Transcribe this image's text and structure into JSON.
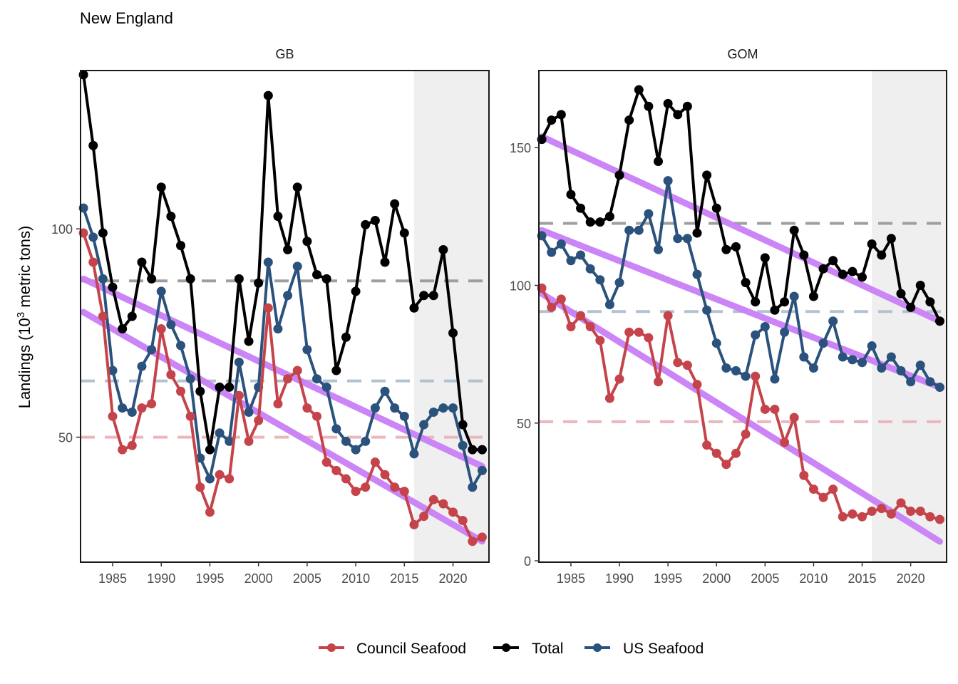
{
  "title": "New England",
  "ylabel_main": "Landings (10",
  "ylabel_sup": "3",
  "ylabel_rest": " metric tons)",
  "colors": {
    "council": "#c5444b",
    "total": "#000000",
    "us": "#2a527c",
    "trend": "#c87ef5",
    "shade": "#efefef"
  },
  "legend": [
    {
      "name": "Council Seafood",
      "color": "#c5444b"
    },
    {
      "name": "Total",
      "color": "#000000"
    },
    {
      "name": "US Seafood",
      "color": "#2a527c"
    }
  ],
  "chart_data": [
    {
      "type": "line",
      "panel": "GB",
      "x": [
        1982,
        1983,
        1984,
        1985,
        1986,
        1987,
        1988,
        1989,
        1990,
        1991,
        1992,
        1993,
        1994,
        1995,
        1996,
        1997,
        1998,
        1999,
        2000,
        2001,
        2002,
        2003,
        2004,
        2005,
        2006,
        2007,
        2008,
        2009,
        2010,
        2011,
        2012,
        2013,
        2014,
        2015,
        2016,
        2017,
        2018,
        2019,
        2020,
        2021,
        2022,
        2023
      ],
      "xlim": [
        1981.7,
        2023.7
      ],
      "xticks": [
        1985,
        1990,
        1995,
        2000,
        2005,
        2010,
        2015,
        2020
      ],
      "ylim": [
        20,
        138
      ],
      "yticks": [
        50,
        100
      ],
      "shade_from": 2016,
      "series": [
        {
          "name": "Total",
          "values": [
            137,
            120,
            99,
            86,
            76,
            79,
            92,
            88,
            110,
            103,
            96,
            88,
            61,
            47,
            62,
            62,
            88,
            73,
            87,
            132,
            103,
            95,
            110,
            97,
            89,
            88,
            66,
            74,
            85,
            101,
            102,
            92,
            106,
            99,
            81,
            84,
            84,
            95,
            75,
            53,
            47,
            47
          ]
        },
        {
          "name": "US Seafood",
          "values": [
            105,
            98,
            88,
            66,
            57,
            56,
            67,
            71,
            85,
            77,
            72,
            64,
            45,
            40,
            51,
            49,
            68,
            56,
            62,
            92,
            76,
            84,
            91,
            71,
            64,
            62,
            52,
            49,
            47,
            49,
            57,
            61,
            57,
            55,
            46,
            53,
            56,
            57,
            57,
            48,
            38,
            42
          ]
        },
        {
          "name": "Council Seafood",
          "values": [
            99,
            92,
            79,
            55,
            47,
            48,
            57,
            58,
            76,
            65,
            61,
            55,
            38,
            32,
            41,
            40,
            60,
            49,
            54,
            81,
            58,
            64,
            66,
            57,
            55,
            44,
            42,
            40,
            37,
            38,
            44,
            41,
            38,
            37,
            29,
            31,
            35,
            34,
            32,
            30,
            25,
            26
          ]
        }
      ],
      "hlines": {
        "total": 87.5,
        "us": 63.5,
        "council": 50
      },
      "trends": [
        {
          "from": [
            1982,
            88
          ],
          "to": [
            2023,
            43
          ]
        },
        {
          "from": [
            1982,
            80
          ],
          "to": [
            2023,
            25
          ]
        }
      ]
    },
    {
      "type": "line",
      "panel": "GOM",
      "x": [
        1982,
        1983,
        1984,
        1985,
        1986,
        1987,
        1988,
        1989,
        1990,
        1991,
        1992,
        1993,
        1994,
        1995,
        1996,
        1997,
        1998,
        1999,
        2000,
        2001,
        2002,
        2003,
        2004,
        2005,
        2006,
        2007,
        2008,
        2009,
        2010,
        2011,
        2012,
        2013,
        2014,
        2015,
        2016,
        2017,
        2018,
        2019,
        2020,
        2021,
        2022,
        2023
      ],
      "xlim": [
        1981.7,
        2023.7
      ],
      "xticks": [
        1985,
        1990,
        1995,
        2000,
        2005,
        2010,
        2015,
        2020
      ],
      "ylim": [
        -0.5,
        178
      ],
      "yticks": [
        0,
        50,
        100,
        150
      ],
      "shade_from": 2016,
      "series": [
        {
          "name": "Total",
          "values": [
            153,
            160,
            162,
            133,
            128,
            123,
            123,
            125,
            140,
            160,
            171,
            165,
            145,
            166,
            162,
            165,
            119,
            140,
            128,
            113,
            114,
            101,
            94,
            110,
            91,
            94,
            120,
            111,
            96,
            106,
            109,
            104,
            105,
            103,
            115,
            111,
            117,
            97,
            92,
            100,
            94,
            87
          ]
        },
        {
          "name": "US Seafood",
          "values": [
            118,
            112,
            115,
            109,
            111,
            106,
            102,
            93,
            101,
            120,
            120,
            126,
            113,
            138,
            117,
            117,
            104,
            91,
            79,
            70,
            69,
            67,
            82,
            85,
            66,
            83,
            96,
            74,
            70,
            79,
            87,
            74,
            73,
            72,
            78,
            70,
            74,
            69,
            65,
            71,
            65,
            63
          ]
        },
        {
          "name": "Council Seafood",
          "values": [
            99,
            92,
            95,
            85,
            89,
            85,
            80,
            59,
            66,
            83,
            83,
            81,
            65,
            89,
            72,
            71,
            64,
            42,
            39,
            35,
            39,
            46,
            67,
            55,
            55,
            43,
            52,
            31,
            26,
            23,
            26,
            16,
            17,
            16,
            18,
            19,
            17,
            21,
            18,
            18,
            16,
            15
          ]
        }
      ],
      "hlines": {
        "total": 122.5,
        "us": 90.5,
        "council": 50.5
      },
      "trends": [
        {
          "from": [
            1982,
            154
          ],
          "to": [
            2023,
            87
          ]
        },
        {
          "from": [
            1982,
            120
          ],
          "to": [
            2023,
            63
          ]
        },
        {
          "from": [
            1982,
            97
          ],
          "to": [
            2023,
            7
          ]
        }
      ]
    }
  ]
}
